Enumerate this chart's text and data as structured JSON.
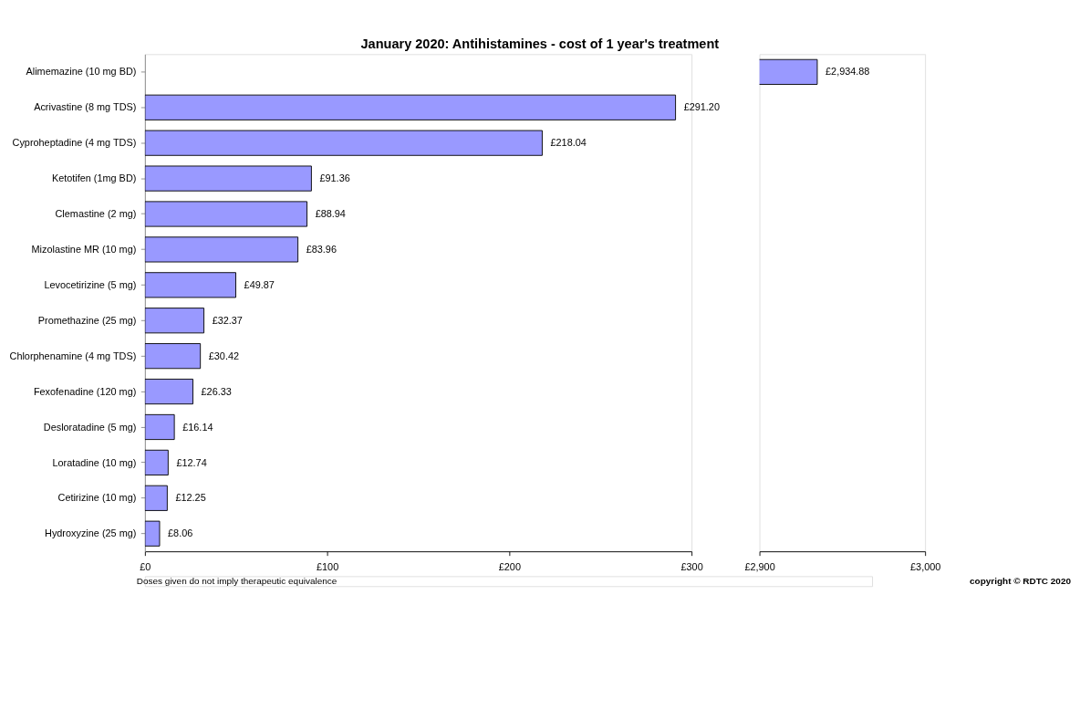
{
  "chart_data": [
    {
      "type": "bar",
      "orientation": "horizontal",
      "title": "January 2020: Antihistamines - cost of 1 year's treatment",
      "categories": [
        "Alimemazine (10 mg BD)",
        "Acrivastine (8 mg TDS)",
        "Cyproheptadine (4 mg TDS)",
        "Ketotifen (1mg BD)",
        "Clemastine (2 mg)",
        "Mizolastine MR (10 mg)",
        "Levocetirizine (5 mg)",
        "Promethazine (25 mg)",
        "Chlorphenamine (4 mg TDS)",
        "Fexofenadine (120 mg)",
        "Desloratadine (5 mg)",
        "Loratadine (10 mg)",
        "Cetirizine (10 mg)",
        "Hydroxyzine (25 mg)"
      ],
      "values": [
        null,
        291.2,
        218.04,
        91.36,
        88.94,
        83.96,
        49.87,
        32.37,
        30.42,
        26.33,
        16.14,
        12.74,
        12.25,
        8.06
      ],
      "value_labels": [
        null,
        "£291.20",
        "£218.04",
        "£91.36",
        "£88.94",
        "£83.96",
        "£49.87",
        "£32.37",
        "£30.42",
        "£26.33",
        "£16.14",
        "£12.74",
        "£12.25",
        "£8.06"
      ],
      "color": "#9999ff",
      "xlim": [
        0,
        300
      ],
      "xticks": [
        {
          "value": 0,
          "label": "£0"
        },
        {
          "value": 100,
          "label": "£100"
        },
        {
          "value": 200,
          "label": "£200"
        },
        {
          "value": 300,
          "label": "£300"
        }
      ],
      "grid": false,
      "annotations": [
        "Doses given  do not imply therapeutic equivalence",
        "copyright © RDTC 2020"
      ]
    },
    {
      "type": "bar",
      "orientation": "horizontal",
      "categories": [
        null,
        null,
        null,
        null,
        null,
        null,
        null,
        null,
        null,
        null,
        null,
        null,
        null,
        null
      ],
      "values": [
        2934.88,
        null,
        null,
        null,
        null,
        null,
        null,
        null,
        null,
        null,
        null,
        null,
        null,
        null
      ],
      "value_labels": [
        "£2,934.88",
        null,
        null,
        null,
        null,
        null,
        null,
        null,
        null,
        null,
        null,
        null,
        null,
        null
      ],
      "color": "#9999ff",
      "xlim": [
        2900,
        3000
      ],
      "xticks": [
        {
          "value": 2900,
          "label": "£2,900"
        },
        {
          "value": 3000,
          "label": "£3,000"
        }
      ],
      "grid": false,
      "tick_labels": "x"
    }
  ]
}
